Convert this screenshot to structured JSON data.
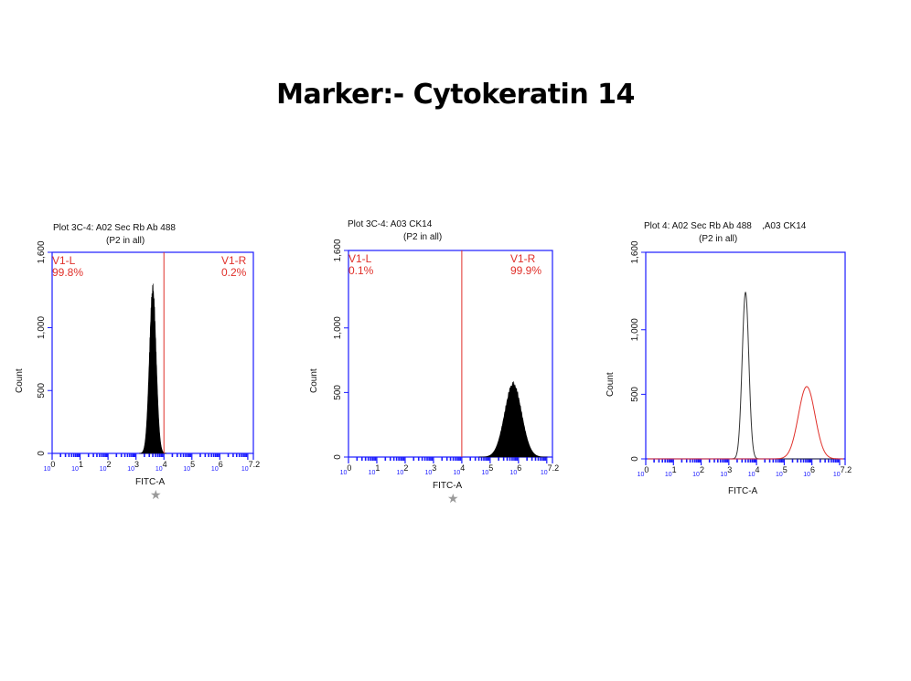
{
  "page": {
    "title": "Marker:- Cytokeratin 14"
  },
  "colors": {
    "axis": "#1a1aff",
    "gate": "#e0302a",
    "fill": "#000000",
    "overlay_a": "#333333",
    "overlay_b": "#e0302a",
    "star": "#9a9a9a"
  },
  "chart_data": [
    {
      "type": "area",
      "title": "Plot 3C-4: A02 Sec Rb Ab 488",
      "subtitle": "(P2 in all)",
      "xlabel": "FITC-A",
      "ylabel": "Count",
      "x_scale": "log10",
      "xlim": [
        1,
        15848932
      ],
      "ylim": [
        0,
        1600
      ],
      "yticks": [
        "0",
        "500",
        "1,000",
        "1,600"
      ],
      "xticks": [
        "10^0",
        "10^1",
        "10^2",
        "10^3",
        "10^4",
        "10^5",
        "10^6",
        "10^7.2"
      ],
      "gate_x": 10000,
      "gates": [
        {
          "name": "V1-L",
          "percent": "99.8%"
        },
        {
          "name": "V1-R",
          "percent": "0.2%"
        }
      ],
      "series": [
        {
          "peak_x": 4000,
          "peak_y": 1290,
          "width_decades": 0.12,
          "style": "filled"
        }
      ],
      "marker": "★"
    },
    {
      "type": "area",
      "title": "Plot 3C-4: A03 CK14",
      "subtitle": "(P2 in all)",
      "xlabel": "FITC-A",
      "ylabel": "Count",
      "x_scale": "log10",
      "xlim": [
        1,
        15848932
      ],
      "ylim": [
        0,
        1600
      ],
      "yticks": [
        "0",
        "500",
        "1,000",
        "1,600"
      ],
      "xticks": [
        "10^0",
        "10^1",
        "10^2",
        "10^3",
        "10^4",
        "10^5",
        "10^6",
        "10^7.2"
      ],
      "gate_x": 10000,
      "gates": [
        {
          "name": "V1-L",
          "percent": "0.1%"
        },
        {
          "name": "V1-R",
          "percent": "99.9%"
        }
      ],
      "series": [
        {
          "peak_x": 650000,
          "peak_y": 560,
          "width_decades": 0.3,
          "style": "filled"
        }
      ],
      "marker": "★"
    },
    {
      "type": "line",
      "title": "Plot 4: A02 Sec Rb Ab 488    ,A03 CK14",
      "subtitle": "(P2 in all)",
      "xlabel": "FITC-A",
      "ylabel": "Count",
      "x_scale": "log10",
      "xlim": [
        1,
        15848932
      ],
      "ylim": [
        0,
        1600
      ],
      "yticks": [
        "0",
        "500",
        "1,000",
        "1,600"
      ],
      "xticks": [
        "10^0",
        "10^1",
        "10^2",
        "10^3",
        "10^4",
        "10^5",
        "10^6",
        "10^7.2"
      ],
      "series": [
        {
          "peak_x": 4000,
          "peak_y": 1290,
          "width_decades": 0.12,
          "style": "line-dark"
        },
        {
          "peak_x": 650000,
          "peak_y": 560,
          "width_decades": 0.3,
          "style": "line-red"
        }
      ]
    }
  ]
}
